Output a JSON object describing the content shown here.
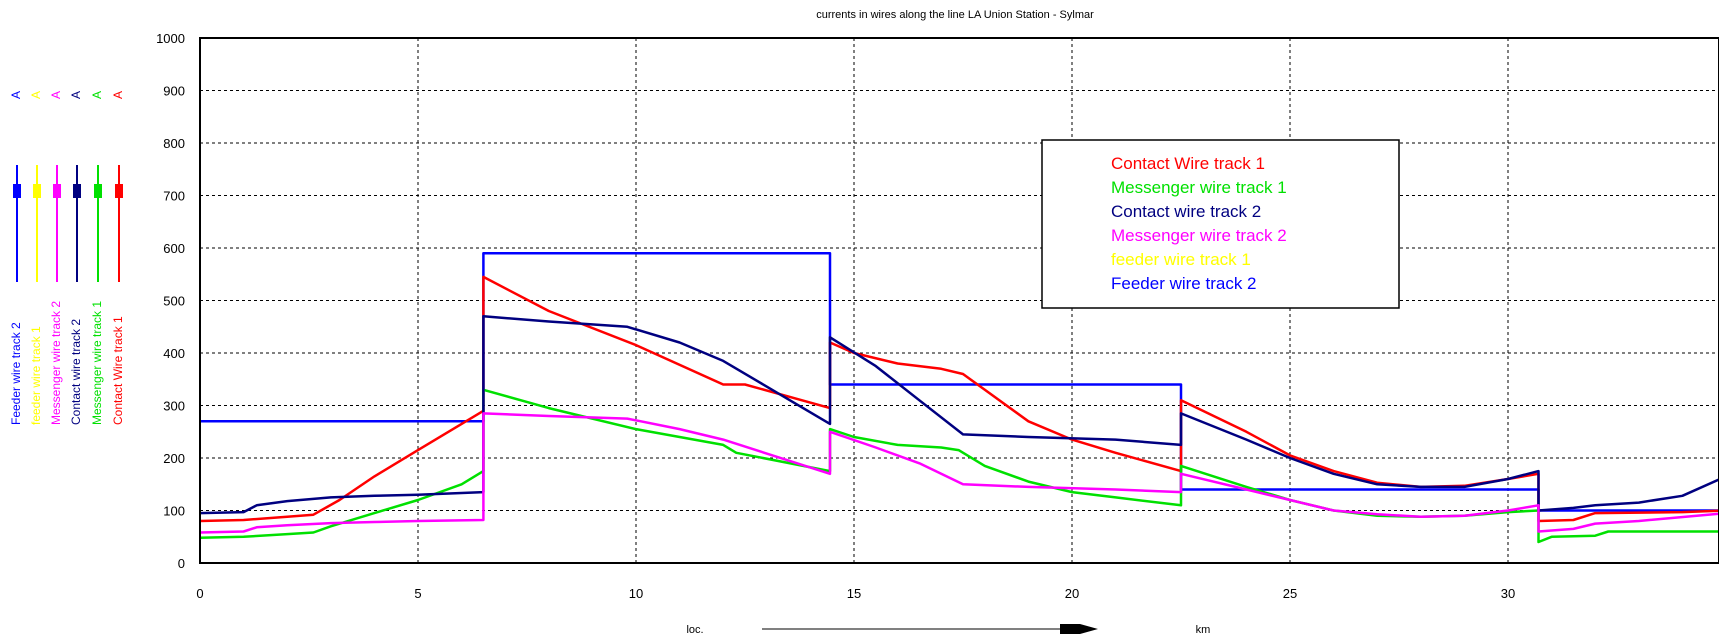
{
  "chart_data": {
    "type": "line",
    "title": "currents in wires  along the line LA Union Station - Sylmar",
    "xlabel": "loc.",
    "xunit": "km",
    "ylim": [
      0,
      1000
    ],
    "xlim": [
      0,
      35
    ],
    "xticks": [
      "0",
      "5",
      "10",
      "15",
      "20",
      "25",
      "30"
    ],
    "yticks": [
      "0",
      "100",
      "200",
      "300",
      "400",
      "500",
      "600",
      "700",
      "800",
      "900",
      "1000"
    ],
    "grid": true,
    "legend_position": "top-right",
    "legend_entries": [
      {
        "label": "Contact Wire track 1",
        "color": "#ff0000"
      },
      {
        "label": "Messenger wire track 1",
        "color": "#00e000"
      },
      {
        "label": "Contact wire track 2",
        "color": "#000080"
      },
      {
        "label": "Messenger wire track 2",
        "color": "#ff00ff"
      },
      {
        "label": "feeder wire track 1",
        "color": "#ffff00"
      },
      {
        "label": "Feeder wire track 2",
        "color": "#0000ff"
      }
    ],
    "side_labels": [
      {
        "label": "Feeder wire track 2",
        "unit": "A",
        "color": "#0000ff"
      },
      {
        "label": "feeder wire track 1",
        "unit": "A",
        "color": "#ffff00"
      },
      {
        "label": "Messenger wire track 2",
        "unit": "A",
        "color": "#ff00ff"
      },
      {
        "label": "Contact wire track 2",
        "unit": "A",
        "color": "#000080"
      },
      {
        "label": "Messenger wire track 1",
        "unit": "A",
        "color": "#00e000"
      },
      {
        "label": "Contact Wire track 1",
        "unit": "A",
        "color": "#ff0000"
      }
    ],
    "series": [
      {
        "name": "Feeder wire track 2",
        "color": "#0000ff",
        "points": [
          [
            0,
            270
          ],
          [
            6.5,
            270
          ],
          [
            6.5,
            590
          ],
          [
            14.45,
            590
          ],
          [
            14.45,
            340
          ],
          [
            22.5,
            340
          ],
          [
            22.5,
            140
          ],
          [
            30.7,
            140
          ],
          [
            30.7,
            100
          ],
          [
            35,
            100
          ]
        ]
      },
      {
        "name": "Contact Wire track 1",
        "color": "#ff0000",
        "points": [
          [
            0,
            80
          ],
          [
            1,
            82
          ],
          [
            2,
            88
          ],
          [
            2.6,
            92
          ],
          [
            3.2,
            120
          ],
          [
            4,
            165
          ],
          [
            5,
            215
          ],
          [
            6,
            265
          ],
          [
            6.5,
            290
          ],
          [
            6.5,
            545
          ],
          [
            8,
            480
          ],
          [
            10,
            415
          ],
          [
            12,
            340
          ],
          [
            12.5,
            340
          ],
          [
            14.45,
            295
          ],
          [
            14.45,
            420
          ],
          [
            15,
            400
          ],
          [
            16,
            380
          ],
          [
            17,
            370
          ],
          [
            17.5,
            360
          ],
          [
            18,
            330
          ],
          [
            19,
            270
          ],
          [
            20,
            235
          ],
          [
            21,
            210
          ],
          [
            22.5,
            175
          ],
          [
            22.5,
            310
          ],
          [
            24,
            250
          ],
          [
            25,
            205
          ],
          [
            26,
            175
          ],
          [
            27,
            153
          ],
          [
            28,
            145
          ],
          [
            29,
            147
          ],
          [
            30,
            160
          ],
          [
            30.7,
            170
          ],
          [
            30.7,
            80
          ],
          [
            31.5,
            82
          ],
          [
            32,
            95
          ],
          [
            34,
            97
          ],
          [
            35,
            100
          ]
        ]
      },
      {
        "name": "Messenger wire track 1",
        "color": "#00e000",
        "points": [
          [
            0,
            48
          ],
          [
            1,
            50
          ],
          [
            2,
            55
          ],
          [
            2.6,
            58
          ],
          [
            3,
            70
          ],
          [
            4,
            95
          ],
          [
            5,
            120
          ],
          [
            6,
            150
          ],
          [
            6.5,
            175
          ],
          [
            6.5,
            330
          ],
          [
            8,
            295
          ],
          [
            10,
            255
          ],
          [
            12,
            225
          ],
          [
            12.3,
            210
          ],
          [
            14.45,
            175
          ],
          [
            14.45,
            255
          ],
          [
            15,
            240
          ],
          [
            16,
            225
          ],
          [
            17,
            220
          ],
          [
            17.4,
            215
          ],
          [
            18,
            185
          ],
          [
            19,
            155
          ],
          [
            20,
            135
          ],
          [
            21,
            125
          ],
          [
            22.5,
            110
          ],
          [
            22.5,
            185
          ],
          [
            24,
            145
          ],
          [
            25,
            120
          ],
          [
            26,
            100
          ],
          [
            27,
            90
          ],
          [
            28,
            88
          ],
          [
            29,
            90
          ],
          [
            30,
            97
          ],
          [
            30.7,
            100
          ],
          [
            30.7,
            40
          ],
          [
            31,
            50
          ],
          [
            32,
            52
          ],
          [
            32.3,
            60
          ],
          [
            35,
            60
          ]
        ]
      },
      {
        "name": "Contact wire track 2",
        "color": "#000080",
        "points": [
          [
            0,
            95
          ],
          [
            1,
            97
          ],
          [
            1.3,
            110
          ],
          [
            2,
            118
          ],
          [
            3,
            125
          ],
          [
            4,
            128
          ],
          [
            5,
            130
          ],
          [
            6.5,
            135
          ],
          [
            6.5,
            470
          ],
          [
            8,
            460
          ],
          [
            9.8,
            450
          ],
          [
            11,
            420
          ],
          [
            12,
            385
          ],
          [
            14.45,
            265
          ],
          [
            14.45,
            430
          ],
          [
            15.5,
            375
          ],
          [
            16.5,
            310
          ],
          [
            17.5,
            245
          ],
          [
            19,
            240
          ],
          [
            21,
            235
          ],
          [
            22.5,
            225
          ],
          [
            22.5,
            285
          ],
          [
            24,
            235
          ],
          [
            25,
            200
          ],
          [
            26,
            170
          ],
          [
            27,
            150
          ],
          [
            28,
            145
          ],
          [
            29,
            145
          ],
          [
            30,
            160
          ],
          [
            30.7,
            175
          ],
          [
            30.7,
            100
          ],
          [
            31.5,
            105
          ],
          [
            32,
            110
          ],
          [
            33,
            115
          ],
          [
            34,
            128
          ],
          [
            35,
            165
          ]
        ]
      },
      {
        "name": "Messenger wire track 2",
        "color": "#ff00ff",
        "points": [
          [
            0,
            58
          ],
          [
            1,
            60
          ],
          [
            1.3,
            68
          ],
          [
            2,
            72
          ],
          [
            3,
            76
          ],
          [
            4,
            78
          ],
          [
            5,
            80
          ],
          [
            6.5,
            82
          ],
          [
            6.5,
            285
          ],
          [
            8,
            280
          ],
          [
            9.8,
            275
          ],
          [
            11,
            255
          ],
          [
            12,
            235
          ],
          [
            14.45,
            170
          ],
          [
            14.45,
            250
          ],
          [
            15.5,
            220
          ],
          [
            16.5,
            190
          ],
          [
            17.5,
            150
          ],
          [
            19,
            145
          ],
          [
            21,
            140
          ],
          [
            22.5,
            135
          ],
          [
            22.5,
            170
          ],
          [
            24,
            140
          ],
          [
            25,
            120
          ],
          [
            26,
            100
          ],
          [
            27,
            93
          ],
          [
            28,
            88
          ],
          [
            29,
            90
          ],
          [
            30,
            100
          ],
          [
            30.7,
            110
          ],
          [
            30.7,
            60
          ],
          [
            31.5,
            65
          ],
          [
            32,
            75
          ],
          [
            33,
            80
          ],
          [
            35,
            95
          ]
        ]
      },
      {
        "name": "feeder wire track 1",
        "color": "#ffff00",
        "points": []
      }
    ]
  }
}
